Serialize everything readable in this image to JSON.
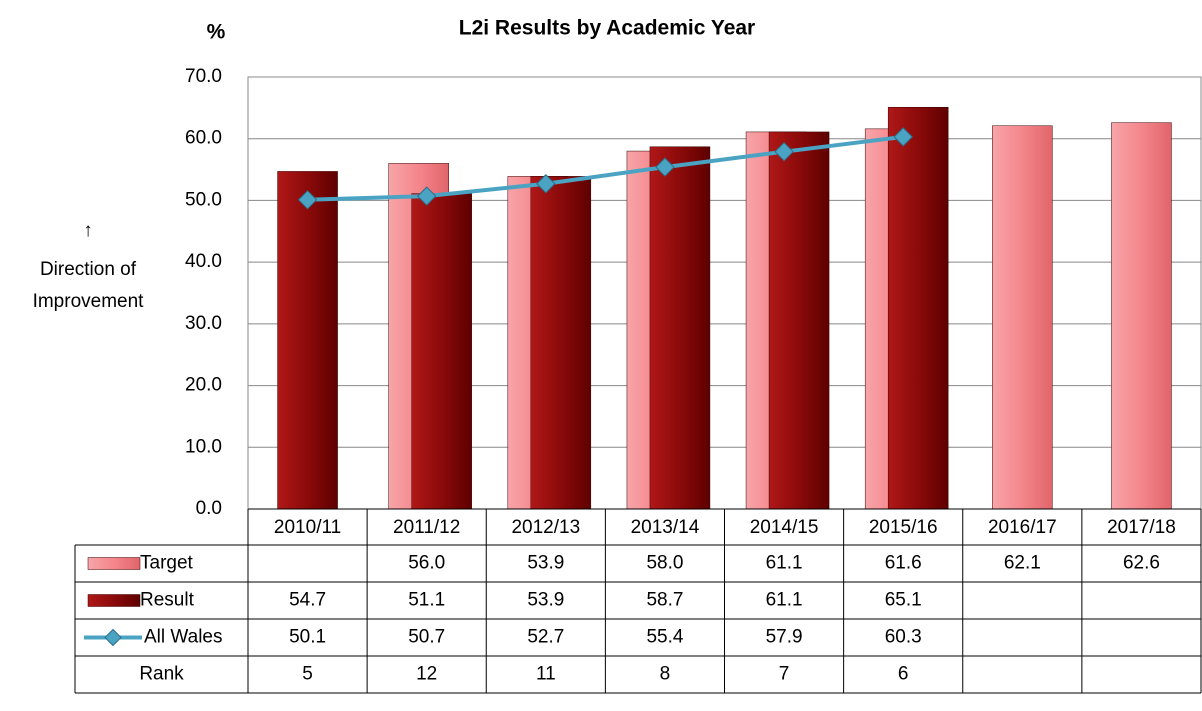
{
  "chart_data": {
    "type": "bar",
    "title": "L2i Results by Academic Year",
    "y_axis_label": "%",
    "annotation": [
      "↑",
      "Direction of",
      "Improvement"
    ],
    "categories": [
      "2010/11",
      "2011/12",
      "2012/13",
      "2013/14",
      "2014/15",
      "2015/16",
      "2016/17",
      "2017/18"
    ],
    "series": [
      {
        "name": "Target",
        "type": "bar",
        "color": "#f4868b",
        "values": [
          null,
          56.0,
          53.9,
          58.0,
          61.1,
          61.6,
          62.1,
          62.6
        ],
        "value_labels": [
          null,
          "56.0",
          "53.9",
          "58.0",
          "61.1",
          "61.6",
          "62.1",
          "62.6"
        ]
      },
      {
        "name": "Result",
        "type": "bar",
        "color": "#8b0a0a",
        "values": [
          54.7,
          51.1,
          53.9,
          58.7,
          61.1,
          65.1,
          null,
          null
        ],
        "value_labels": [
          "54.7",
          "51.1",
          "53.9",
          "58.7",
          "61.1",
          "65.1",
          null,
          null
        ]
      },
      {
        "name": "All Wales",
        "type": "line",
        "color": "#4ba3c3",
        "values": [
          50.1,
          50.7,
          52.7,
          55.4,
          57.9,
          60.3,
          null,
          null
        ],
        "value_labels": [
          "50.1",
          "50.7",
          "52.7",
          "55.4",
          "57.9",
          "60.3",
          null,
          null
        ]
      }
    ],
    "rank": {
      "name": "Rank",
      "values": [
        5,
        12,
        11,
        8,
        7,
        6,
        null,
        null
      ]
    },
    "ylim": [
      0,
      70
    ],
    "yticks": [
      {
        "value": 0,
        "label": "0.0"
      },
      {
        "value": 10,
        "label": "10.0"
      },
      {
        "value": 20,
        "label": "20.0"
      },
      {
        "value": 30,
        "label": "30.0"
      },
      {
        "value": 40,
        "label": "40.0"
      },
      {
        "value": 50,
        "label": "50.0"
      },
      {
        "value": 60,
        "label": "60.0"
      },
      {
        "value": 70,
        "label": "70.0"
      }
    ],
    "grid": true
  }
}
